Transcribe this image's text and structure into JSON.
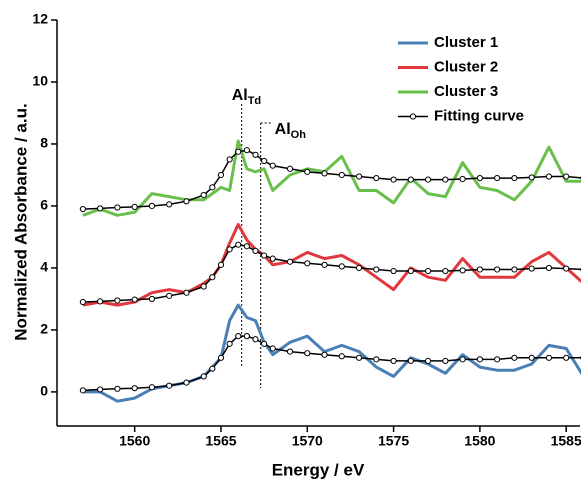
{
  "chart_data": {
    "type": "line",
    "xlabel": "Energy / eV",
    "ylabel": "Normalized Absorbance / a.u.",
    "xlim": [
      1555.5,
      1585.8
    ],
    "xticks": [
      1560,
      1565,
      1570,
      1575,
      1580,
      1585
    ],
    "ylim": [
      -1.1,
      12
    ],
    "yticks": [
      0,
      2,
      4,
      6,
      8,
      10,
      12
    ],
    "legend": "upper right",
    "x": [
      1557,
      1558,
      1559,
      1560,
      1561,
      1562,
      1563,
      1564,
      1564.5,
      1565,
      1565.5,
      1566,
      1566.5,
      1567,
      1567.5,
      1568,
      1569,
      1570,
      1571,
      1572,
      1573,
      1574,
      1575,
      1576,
      1577,
      1578,
      1579,
      1580,
      1581,
      1582,
      1583,
      1584,
      1585,
      1586
    ],
    "series": [
      {
        "name": "Cluster 1",
        "color": "#4a7fb5",
        "values": [
          0.0,
          0.0,
          -0.3,
          -0.2,
          0.1,
          0.2,
          0.3,
          0.5,
          0.8,
          1.1,
          2.3,
          2.8,
          2.4,
          2.3,
          1.6,
          1.2,
          1.6,
          1.8,
          1.3,
          1.5,
          1.3,
          0.8,
          0.5,
          1.1,
          0.9,
          0.6,
          1.2,
          0.8,
          0.7,
          0.7,
          0.9,
          1.5,
          1.4,
          0.5
        ]
      },
      {
        "name": "Cluster 2",
        "color": "#e0383e",
        "values": [
          2.8,
          2.9,
          2.8,
          2.9,
          3.2,
          3.3,
          3.2,
          3.5,
          3.7,
          4.1,
          4.8,
          5.4,
          4.9,
          4.6,
          4.4,
          4.1,
          4.2,
          4.5,
          4.3,
          4.4,
          4.1,
          3.7,
          3.3,
          4.0,
          3.7,
          3.6,
          4.3,
          3.7,
          3.7,
          3.7,
          4.2,
          4.5,
          4.0,
          3.5
        ]
      },
      {
        "name": "Cluster 3",
        "color": "#6abf4b",
        "values": [
          5.7,
          5.9,
          5.7,
          5.8,
          6.4,
          6.3,
          6.2,
          6.2,
          6.4,
          6.6,
          6.5,
          8.1,
          7.2,
          7.1,
          7.2,
          6.5,
          7.0,
          7.2,
          7.1,
          7.6,
          6.5,
          6.5,
          6.1,
          6.9,
          6.4,
          6.3,
          7.4,
          6.6,
          6.5,
          6.2,
          6.8,
          7.9,
          6.8,
          6.8
        ]
      },
      {
        "name": "Fitting curve",
        "color": "#000000",
        "marker": "circle",
        "values": [
          0.05,
          0.08,
          0.1,
          0.12,
          0.15,
          0.2,
          0.3,
          0.5,
          0.75,
          1.1,
          1.55,
          1.8,
          1.8,
          1.7,
          1.55,
          1.4,
          1.3,
          1.25,
          1.2,
          1.15,
          1.1,
          1.05,
          1.0,
          1.0,
          1.0,
          1.0,
          1.05,
          1.05,
          1.05,
          1.1,
          1.1,
          1.1,
          1.1,
          1.1
        ]
      },
      {
        "color": "#000000",
        "marker": "circle",
        "values": [
          2.9,
          2.92,
          2.95,
          2.98,
          3.0,
          3.1,
          3.2,
          3.4,
          3.7,
          4.1,
          4.6,
          4.75,
          4.7,
          4.55,
          4.4,
          4.3,
          4.2,
          4.15,
          4.1,
          4.05,
          4.0,
          3.95,
          3.9,
          3.9,
          3.9,
          3.9,
          3.92,
          3.95,
          3.95,
          3.95,
          3.98,
          4.0,
          3.98,
          3.95
        ]
      },
      {
        "color": "#000000",
        "marker": "circle",
        "values": [
          5.9,
          5.92,
          5.95,
          5.97,
          6.0,
          6.05,
          6.15,
          6.35,
          6.6,
          7.0,
          7.5,
          7.75,
          7.8,
          7.65,
          7.45,
          7.3,
          7.2,
          7.1,
          7.05,
          7.0,
          6.95,
          6.9,
          6.85,
          6.85,
          6.85,
          6.85,
          6.87,
          6.9,
          6.9,
          6.9,
          6.92,
          6.95,
          6.95,
          6.9
        ]
      }
    ],
    "annotations": [
      {
        "text": "Al",
        "sub": "Td",
        "x": 1566.2
      },
      {
        "text": "Al",
        "sub": "Oh",
        "x": 1567.3
      }
    ]
  }
}
